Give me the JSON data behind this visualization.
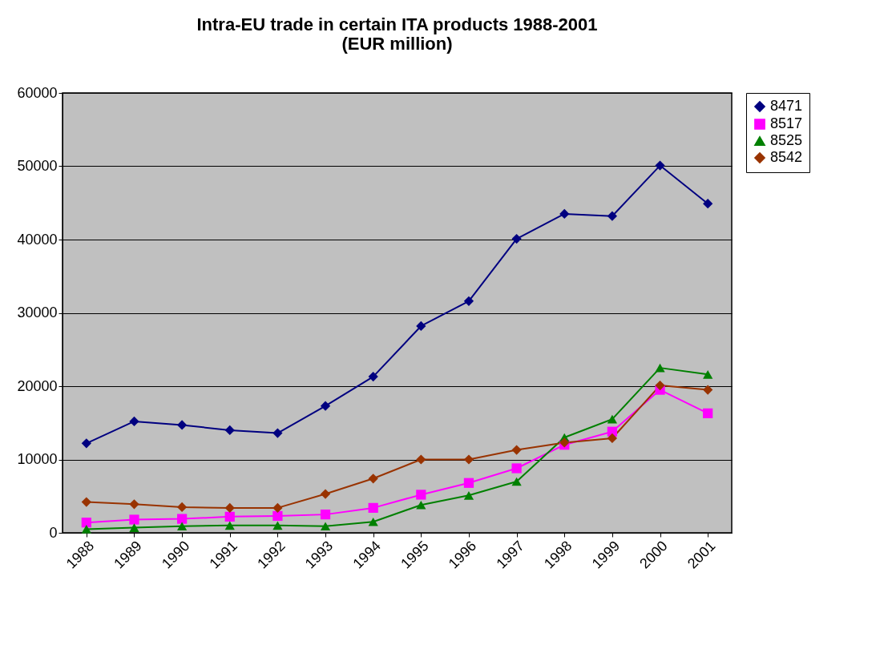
{
  "chart_data": {
    "type": "line",
    "title": [
      "Intra-EU trade in certain ITA products 1988-2001",
      "(EUR million)"
    ],
    "categories": [
      "1988",
      "1989",
      "1990",
      "1991",
      "1992",
      "1993",
      "1994",
      "1995",
      "1996",
      "1997",
      "1998",
      "1999",
      "2000",
      "2001"
    ],
    "series": [
      {
        "name": "8471",
        "color": "#000080",
        "marker": "diamond",
        "values": [
          12200,
          15200,
          14700,
          14000,
          13600,
          17300,
          21300,
          28200,
          31600,
          40100,
          43500,
          43200,
          50100,
          44900
        ]
      },
      {
        "name": "8517",
        "color": "#ff00ff",
        "marker": "square",
        "values": [
          1400,
          1800,
          1900,
          2200,
          2300,
          2500,
          3400,
          5200,
          6800,
          8800,
          12000,
          13800,
          19500,
          16300
        ]
      },
      {
        "name": "8525",
        "color": "#008000",
        "marker": "triangle",
        "values": [
          500,
          700,
          900,
          1000,
          1000,
          900,
          1500,
          3800,
          5100,
          7000,
          13000,
          15500,
          22500,
          21600
        ]
      },
      {
        "name": "8542",
        "color": "#993300",
        "marker": "diamond",
        "values": [
          4200,
          3900,
          3500,
          3400,
          3400,
          5300,
          7400,
          10000,
          10000,
          11300,
          12300,
          12900,
          20100,
          19500
        ]
      }
    ],
    "ylim": [
      0,
      60000
    ],
    "yticks": [
      0,
      10000,
      20000,
      30000,
      40000,
      50000,
      60000
    ],
    "grid": "y",
    "legend": "right"
  }
}
